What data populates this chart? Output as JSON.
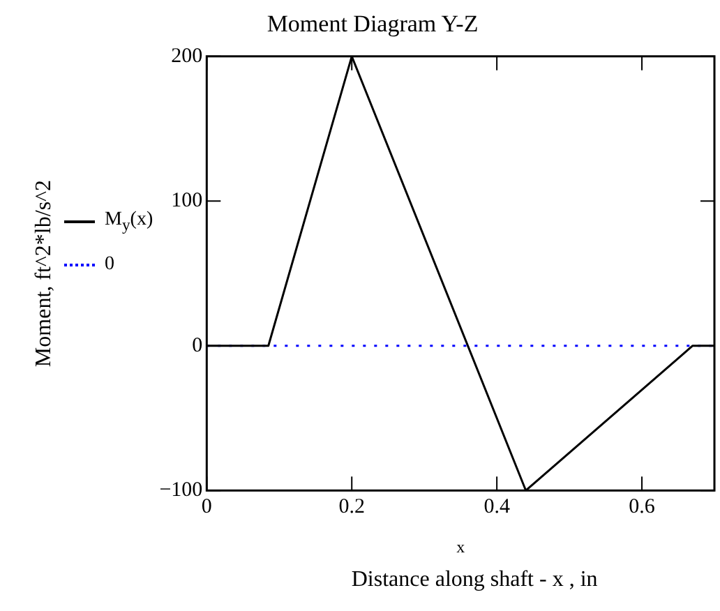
{
  "chart_data": {
    "type": "line",
    "title": "Moment Diagram Y-Z",
    "xlabel": "x",
    "ylabel": "Moment, ft^2*lb/s^2",
    "annotations": [
      "Distance along shaft - x , in"
    ],
    "xlim": [
      0,
      0.7
    ],
    "xticks": [
      0,
      0.2,
      0.4,
      0.6
    ],
    "ylim": [
      -100,
      200
    ],
    "yticks": [
      -100,
      0,
      100,
      200
    ],
    "legend": "left",
    "marker": "none",
    "series": [
      {
        "name": "M$_{y}$(x)",
        "color": "#000000",
        "line_style": "solid",
        "x": [
          0,
          0.085,
          0.2,
          0.44,
          0.67,
          0.7
        ],
        "values": [
          0,
          0,
          200,
          -100,
          0,
          0
        ]
      },
      {
        "name": "0",
        "color": "#0000ff",
        "line_style": "dotted",
        "x": [
          0,
          0.7
        ],
        "values": [
          0,
          0
        ]
      }
    ]
  }
}
